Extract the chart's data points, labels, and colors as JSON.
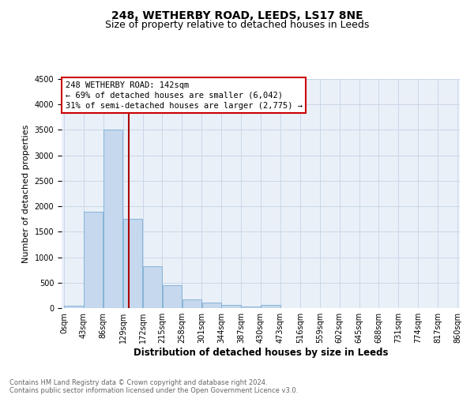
{
  "title": "248, WETHERBY ROAD, LEEDS, LS17 8NE",
  "subtitle": "Size of property relative to detached houses in Leeds",
  "xlabel": "Distribution of detached houses by size in Leeds",
  "ylabel": "Number of detached properties",
  "bin_edges": [
    0,
    43,
    86,
    129,
    172,
    215,
    258,
    301,
    344,
    387,
    430,
    473,
    516,
    559,
    602,
    645,
    688,
    731,
    774,
    817,
    860
  ],
  "bar_heights": [
    40,
    1900,
    3500,
    1750,
    830,
    450,
    175,
    105,
    55,
    35,
    60,
    0,
    0,
    0,
    0,
    0,
    0,
    0,
    0,
    0
  ],
  "bar_color": "#c5d8ed",
  "bar_edgecolor": "#7aadd4",
  "property_line_x": 142,
  "property_line_color": "#aa0000",
  "annotation_line1": "248 WETHERBY ROAD: 142sqm",
  "annotation_line2": "← 69% of detached houses are smaller (6,042)",
  "annotation_line3": "31% of semi-detached houses are larger (2,775) →",
  "annotation_box_edgecolor": "#cc0000",
  "ylim": [
    0,
    4500
  ],
  "yticks": [
    0,
    500,
    1000,
    1500,
    2000,
    2500,
    3000,
    3500,
    4000,
    4500
  ],
  "grid_color": "#c8d8e8",
  "plot_bg_color": "#eaf0f8",
  "footer_text": "Contains HM Land Registry data © Crown copyright and database right 2024.\nContains public sector information licensed under the Open Government Licence v3.0.",
  "title_fontsize": 10,
  "subtitle_fontsize": 9,
  "xlabel_fontsize": 8.5,
  "ylabel_fontsize": 8,
  "tick_fontsize": 7,
  "annotation_fontsize": 7.5,
  "footer_fontsize": 6
}
